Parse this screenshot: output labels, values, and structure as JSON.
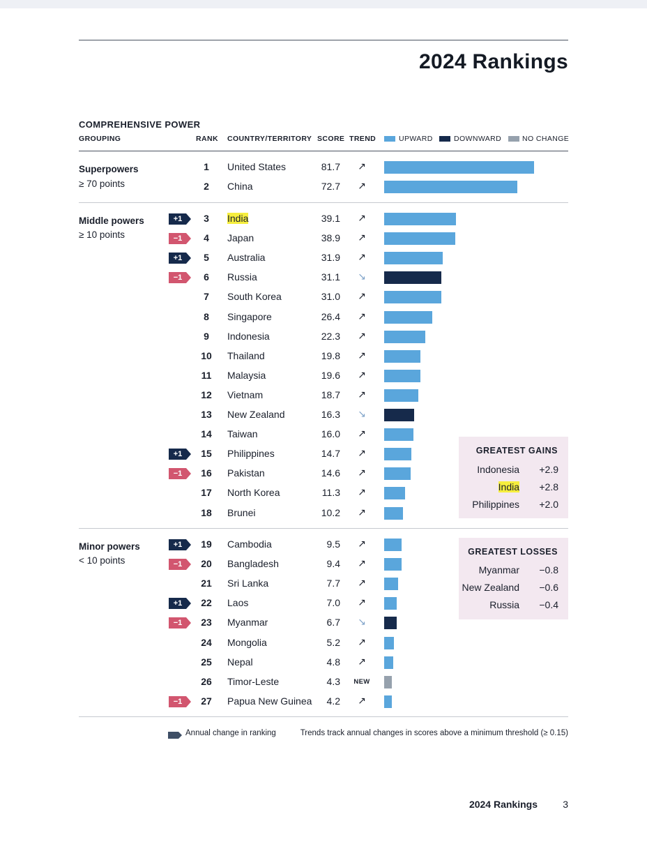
{
  "page": {
    "title": "2024 Rankings",
    "footer_title": "2024 Rankings",
    "page_number": "3"
  },
  "section": {
    "title": "COMPREHENSIVE POWER",
    "headers": {
      "grouping": "GROUPING",
      "rank": "RANK",
      "country": "COUNTRY/TERRITORY",
      "score": "SCORE",
      "trend": "TREND"
    },
    "legend": [
      {
        "label": "UPWARD",
        "color": "#5aa6dc"
      },
      {
        "label": "DOWNWARD",
        "color": "#162a4b"
      },
      {
        "label": "NO CHANGE",
        "color": "#96a1ad"
      }
    ]
  },
  "groups": [
    {
      "name": "Superpowers",
      "range": "≥ 70 points"
    },
    {
      "name": "Middle powers",
      "range": "≥ 10 points"
    },
    {
      "name": "Minor powers",
      "range": "< 10 points"
    }
  ],
  "icons": {
    "up": "↗",
    "down": "↘",
    "new": "NEW"
  },
  "colors": {
    "upward": "#5aa6dc",
    "downward": "#162a4b",
    "nochange": "#96a1ad",
    "gain_badge": "#162a4b",
    "loss_badge": "#d2566f",
    "highlight": "#f6ee3e",
    "box_bg": "#f3e8f0"
  },
  "rows": [
    {
      "rank": "1",
      "country": "United States",
      "score": "81.7",
      "trend": "up",
      "change": ""
    },
    {
      "rank": "2",
      "country": "China",
      "score": "72.7",
      "trend": "up",
      "change": ""
    },
    {
      "rank": "3",
      "country": "India",
      "score": "39.1",
      "trend": "up",
      "change": "+1",
      "highlight": true
    },
    {
      "rank": "4",
      "country": "Japan",
      "score": "38.9",
      "trend": "up",
      "change": "−1"
    },
    {
      "rank": "5",
      "country": "Australia",
      "score": "31.9",
      "trend": "up",
      "change": "+1"
    },
    {
      "rank": "6",
      "country": "Russia",
      "score": "31.1",
      "trend": "down",
      "change": "−1"
    },
    {
      "rank": "7",
      "country": "South Korea",
      "score": "31.0",
      "trend": "up",
      "change": ""
    },
    {
      "rank": "8",
      "country": "Singapore",
      "score": "26.4",
      "trend": "up",
      "change": ""
    },
    {
      "rank": "9",
      "country": "Indonesia",
      "score": "22.3",
      "trend": "up",
      "change": ""
    },
    {
      "rank": "10",
      "country": "Thailand",
      "score": "19.8",
      "trend": "up",
      "change": ""
    },
    {
      "rank": "11",
      "country": "Malaysia",
      "score": "19.6",
      "trend": "up",
      "change": ""
    },
    {
      "rank": "12",
      "country": "Vietnam",
      "score": "18.7",
      "trend": "up",
      "change": ""
    },
    {
      "rank": "13",
      "country": "New Zealand",
      "score": "16.3",
      "trend": "down",
      "change": ""
    },
    {
      "rank": "14",
      "country": "Taiwan",
      "score": "16.0",
      "trend": "up",
      "change": ""
    },
    {
      "rank": "15",
      "country": "Philippines",
      "score": "14.7",
      "trend": "up",
      "change": "+1"
    },
    {
      "rank": "16",
      "country": "Pakistan",
      "score": "14.6",
      "trend": "up",
      "change": "−1"
    },
    {
      "rank": "17",
      "country": "North Korea",
      "score": "11.3",
      "trend": "up",
      "change": ""
    },
    {
      "rank": "18",
      "country": "Brunei",
      "score": "10.2",
      "trend": "up",
      "change": ""
    },
    {
      "rank": "19",
      "country": "Cambodia",
      "score": "9.5",
      "trend": "up",
      "change": "+1"
    },
    {
      "rank": "20",
      "country": "Bangladesh",
      "score": "9.4",
      "trend": "up",
      "change": "−1"
    },
    {
      "rank": "21",
      "country": "Sri Lanka",
      "score": "7.7",
      "trend": "up",
      "change": ""
    },
    {
      "rank": "22",
      "country": "Laos",
      "score": "7.0",
      "trend": "up",
      "change": "+1"
    },
    {
      "rank": "23",
      "country": "Myanmar",
      "score": "6.7",
      "trend": "down",
      "change": "−1"
    },
    {
      "rank": "24",
      "country": "Mongolia",
      "score": "5.2",
      "trend": "up",
      "change": ""
    },
    {
      "rank": "25",
      "country": "Nepal",
      "score": "4.8",
      "trend": "up",
      "change": ""
    },
    {
      "rank": "26",
      "country": "Timor-Leste",
      "score": "4.3",
      "trend": "new",
      "change": ""
    },
    {
      "rank": "27",
      "country": "Papua New Guinea",
      "score": "4.2",
      "trend": "up",
      "change": "−1"
    }
  ],
  "gains": {
    "title": "GREATEST GAINS",
    "items": [
      {
        "country": "Indonesia",
        "value": "+2.9"
      },
      {
        "country": "India",
        "value": "+2.8",
        "highlight": true
      },
      {
        "country": "Philippines",
        "value": "+2.0"
      }
    ]
  },
  "losses": {
    "title": "GREATEST LOSSES",
    "items": [
      {
        "country": "Myanmar",
        "value": "−0.8"
      },
      {
        "country": "New Zealand",
        "value": "−0.6"
      },
      {
        "country": "Russia",
        "value": "−0.4"
      }
    ]
  },
  "footnotes": {
    "badge_note": "Annual change in ranking",
    "trend_note": "Trends track annual changes in scores above a minimum threshold (≥ 0.15)"
  }
}
